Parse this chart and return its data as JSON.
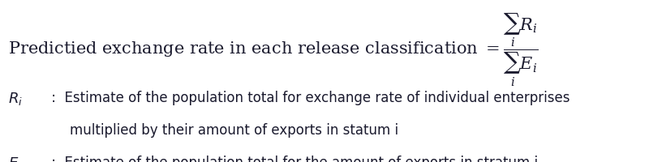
{
  "background_color": "#ffffff",
  "title_plain": "Predictied exchange rate in each release classification ",
  "title_formula": "$= \\dfrac{\\sum_i R_i}{\\sum_i E_i}$",
  "line1_label": "$R_i$",
  "line1_colon": " :  Estimate of the population total for exchange rate of individual enterprises",
  "line1_cont": "multiplied by their amount of exports in statum i",
  "line2_label": "$E_i$",
  "line2_colon": " :  Estimate of the population total for the amount of exports in stratum i",
  "title_fontsize": 15,
  "body_fontsize": 12,
  "text_color": "#1a1a2e",
  "serif_font": "DejaVu Serif",
  "sans_font": "DejaVu Sans"
}
